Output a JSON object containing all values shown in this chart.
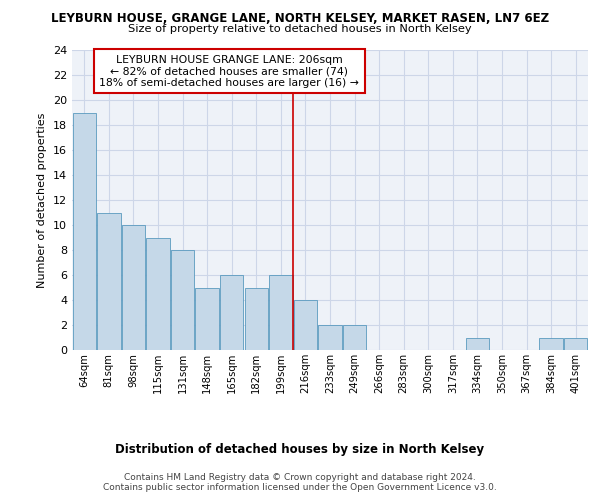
{
  "title": "LEYBURN HOUSE, GRANGE LANE, NORTH KELSEY, MARKET RASEN, LN7 6EZ",
  "subtitle": "Size of property relative to detached houses in North Kelsey",
  "xlabel": "Distribution of detached houses by size in North Kelsey",
  "ylabel": "Number of detached properties",
  "categories": [
    "64sqm",
    "81sqm",
    "98sqm",
    "115sqm",
    "131sqm",
    "148sqm",
    "165sqm",
    "182sqm",
    "199sqm",
    "216sqm",
    "233sqm",
    "249sqm",
    "266sqm",
    "283sqm",
    "300sqm",
    "317sqm",
    "334sqm",
    "350sqm",
    "367sqm",
    "384sqm",
    "401sqm"
  ],
  "values": [
    19,
    11,
    10,
    9,
    8,
    5,
    6,
    5,
    6,
    4,
    2,
    2,
    0,
    0,
    0,
    0,
    1,
    0,
    0,
    1,
    1
  ],
  "bar_color": "#c5d8e8",
  "bar_edge_color": "#5a9abf",
  "vline_color": "#cc0000",
  "annotation_box_text": "LEYBURN HOUSE GRANGE LANE: 206sqm\n← 82% of detached houses are smaller (74)\n18% of semi-detached houses are larger (16) →",
  "annotation_box_color": "#cc0000",
  "ylim": [
    0,
    24
  ],
  "yticks": [
    0,
    2,
    4,
    6,
    8,
    10,
    12,
    14,
    16,
    18,
    20,
    22,
    24
  ],
  "grid_color": "#cdd6e8",
  "background_color": "#eef2f8",
  "footer": "Contains HM Land Registry data © Crown copyright and database right 2024.\nContains public sector information licensed under the Open Government Licence v3.0."
}
